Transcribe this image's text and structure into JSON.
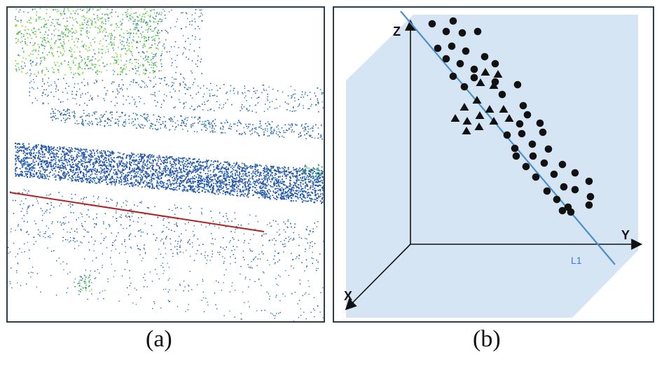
{
  "panel_a": {
    "caption": "(a)",
    "point_cloud_colors": [
      "#1f4fa8",
      "#2a6db3",
      "#3a8fb0",
      "#5ab57a",
      "#7fdc3a",
      "#1e7a8a"
    ],
    "reference_line_color": "#b22222"
  },
  "panel_b": {
    "caption": "(b)",
    "axes": {
      "z": "Z",
      "y": "Y",
      "x": "X"
    },
    "line_label": "L1",
    "plane_color": "#d6e5f3",
    "line_color": "#4a8ed0",
    "markers": {
      "circle": "circle",
      "triangle": "triangle"
    }
  }
}
